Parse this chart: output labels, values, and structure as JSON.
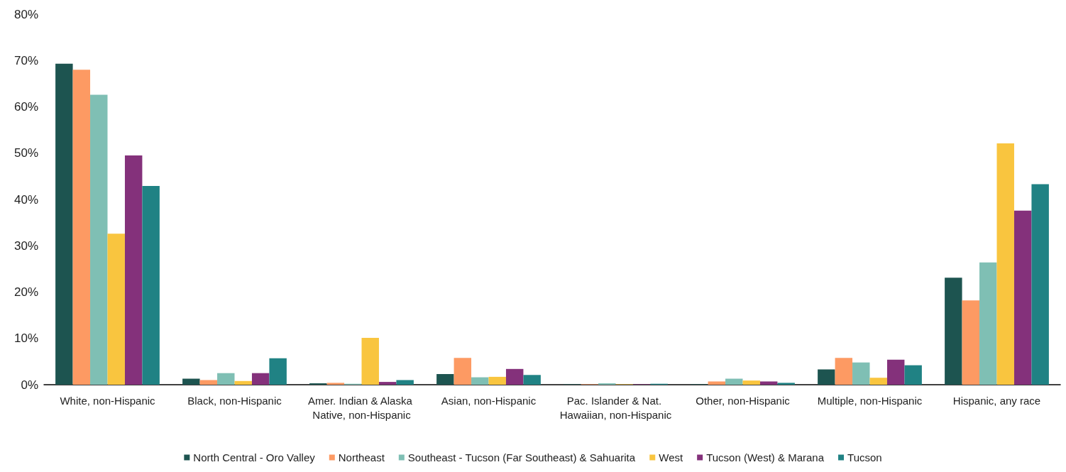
{
  "chart_data": {
    "type": "bar",
    "categories": [
      "White, non-Hispanic",
      "Black, non-Hispanic",
      "Amer. Indian & Alaska Native, non-Hispanic",
      "Asian, non-Hispanic",
      "Pac. Islander & Nat. Hawaiian, non-Hispanic",
      "Other, non-Hispanic",
      "Multiple, non-Hispanic",
      "Hispanic, any race"
    ],
    "series": [
      {
        "name": "North Central - Oro Valley",
        "color": "#1d5450",
        "values": [
          69.3,
          1.3,
          0.3,
          2.3,
          0.1,
          0.1,
          3.3,
          23.1
        ]
      },
      {
        "name": "Northeast",
        "color": "#fd9a63",
        "values": [
          68.0,
          1.0,
          0.4,
          5.8,
          0.1,
          0.7,
          5.8,
          18.2
        ]
      },
      {
        "name": "Southeast - Tucson (Far Southeast) & Sahuarita",
        "color": "#7fbfb4",
        "values": [
          62.6,
          2.5,
          0.2,
          1.6,
          0.3,
          1.3,
          4.8,
          26.4
        ]
      },
      {
        "name": "West",
        "color": "#f9c53f",
        "values": [
          32.6,
          0.8,
          10.1,
          1.7,
          0.1,
          0.9,
          1.5,
          52.1
        ]
      },
      {
        "name": "Tucson (West) & Marana",
        "color": "#84317b",
        "values": [
          49.5,
          2.5,
          0.6,
          3.4,
          0.1,
          0.7,
          5.4,
          37.6
        ]
      },
      {
        "name": "Tucson",
        "color": "#208284",
        "values": [
          42.9,
          5.7,
          1.0,
          2.1,
          0.2,
          0.4,
          4.2,
          43.3
        ]
      }
    ],
    "ylim": [
      0,
      80
    ],
    "yticks": [
      {
        "value": 0,
        "label": "0%"
      },
      {
        "value": 10,
        "label": "10%"
      },
      {
        "value": 20,
        "label": "20%"
      },
      {
        "value": 30,
        "label": "30%"
      },
      {
        "value": 40,
        "label": "40%"
      },
      {
        "value": 50,
        "label": "50%"
      },
      {
        "value": 60,
        "label": "60%"
      },
      {
        "value": 70,
        "label": "70%"
      },
      {
        "value": 80,
        "label": "80%"
      }
    ],
    "grid": false,
    "legend": "bottom"
  }
}
